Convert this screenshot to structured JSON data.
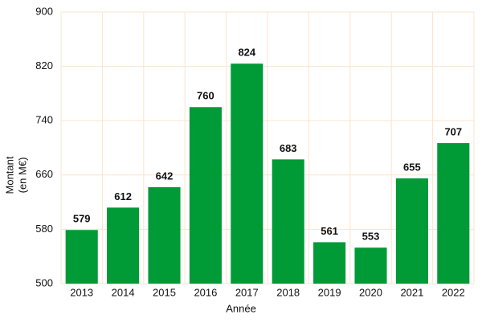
{
  "chart_data": {
    "type": "bar",
    "categories": [
      "2013",
      "2014",
      "2015",
      "2016",
      "2017",
      "2018",
      "2019",
      "2020",
      "2021",
      "2022"
    ],
    "values": [
      579,
      612,
      642,
      760,
      824,
      683,
      561,
      553,
      655,
      707
    ],
    "color": "#009a36",
    "ylim": [
      500,
      900
    ],
    "yticks": [
      500,
      580,
      660,
      740,
      820,
      900
    ],
    "grid": true,
    "xlabel": "Année",
    "ylabel": [
      "Montant",
      "(en M€)"
    ]
  }
}
